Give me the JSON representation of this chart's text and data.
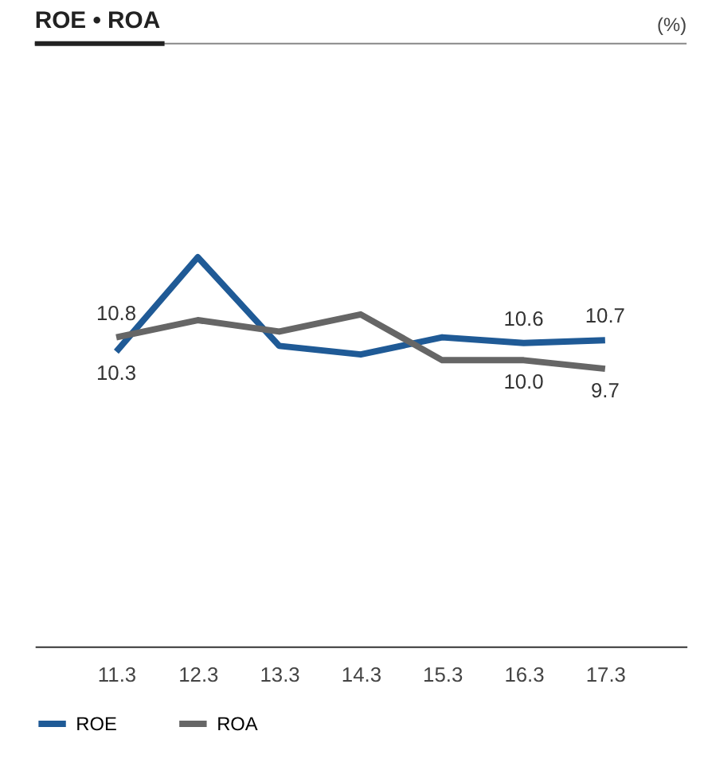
{
  "chart_data": {
    "type": "line",
    "title": "ROE • ROA",
    "annotations": [
      "(%)"
    ],
    "categories": [
      "11.3",
      "12.3",
      "13.3",
      "14.3",
      "15.3",
      "16.3",
      "17.3"
    ],
    "series": [
      {
        "name": "ROE",
        "color": "#1f5a96",
        "values": [
          10.3,
          13.6,
          10.5,
          10.2,
          10.8,
          10.6,
          10.7
        ],
        "value_labels": [
          "10.3",
          null,
          null,
          null,
          null,
          "10.6",
          "10.7"
        ]
      },
      {
        "name": "ROA",
        "color": "#666666",
        "values": [
          10.8,
          11.4,
          11.0,
          11.6,
          10.0,
          10.0,
          9.7
        ],
        "value_labels": [
          "10.8",
          null,
          null,
          null,
          null,
          "10.0",
          "9.7"
        ]
      }
    ],
    "grid": false,
    "legend": "bottom left",
    "marker": "none",
    "line_style": "solid"
  }
}
